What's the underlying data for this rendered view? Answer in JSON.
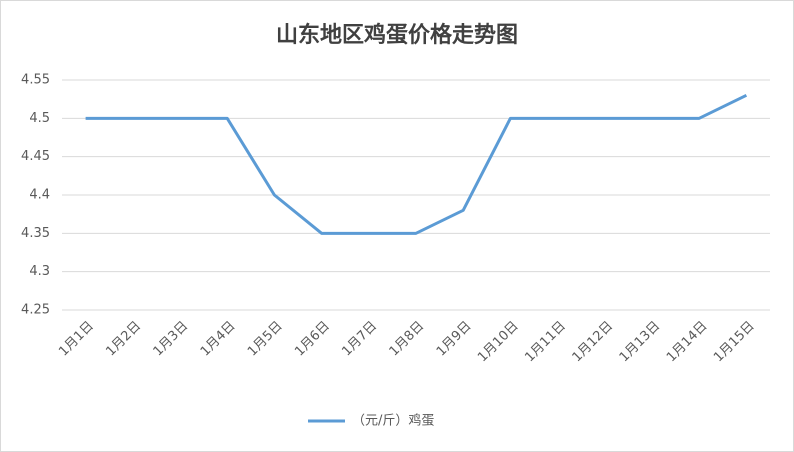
{
  "chart_data": {
    "type": "line",
    "title": "山东地区鸡蛋价格走势图",
    "categories": [
      "1月1日",
      "1月2日",
      "1月3日",
      "1月4日",
      "1月5日",
      "1月6日",
      "1月7日",
      "1月8日",
      "1月9日",
      "1月10日",
      "1月11日",
      "1月12日",
      "1月13日",
      "1月14日",
      "1月15日"
    ],
    "series": [
      {
        "name": "（元/斤）鸡蛋",
        "color": "#5b9bd5",
        "values": [
          4.5,
          4.5,
          4.5,
          4.5,
          4.4,
          4.35,
          4.35,
          4.35,
          4.38,
          4.5,
          4.5,
          4.5,
          4.5,
          4.5,
          4.53
        ]
      }
    ],
    "ylim": [
      4.25,
      4.55
    ],
    "yticks": [
      4.25,
      4.3,
      4.35,
      4.4,
      4.45,
      4.5,
      4.55
    ],
    "grid": true,
    "legend": "bottom"
  }
}
